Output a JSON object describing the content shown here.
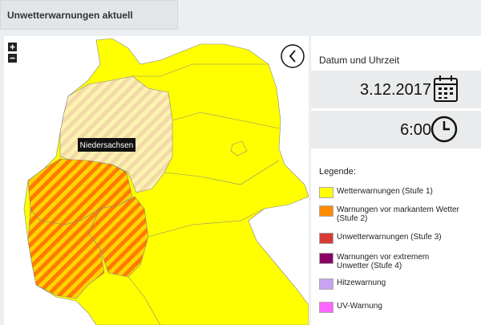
{
  "header": {
    "title": "Unwetterwarnungen aktuell"
  },
  "date_panel": {
    "label": "Datum und Uhrzeit",
    "date": "3.12.2017",
    "time": "6:00"
  },
  "map": {
    "tooltip": "Niedersachsen"
  },
  "legend": {
    "title": "Legende:",
    "items": [
      {
        "label": "Wetterwarnungen (Stufe 1)",
        "color": "#ffff00"
      },
      {
        "label": "Warnungen vor markantem Wetter (Stufe 2)",
        "color": "#ff8c00"
      },
      {
        "label": "Unwetterwarnungen (Stufe 3)",
        "color": "#d83b35"
      },
      {
        "label": "Warnungen vor extremem Unwetter (Stufe 4)",
        "color": "#8b0064"
      },
      {
        "label": "Hitzewarnung",
        "color": "#c9a3f0"
      },
      {
        "label": "UV-Warnung",
        "color": "#ff66ff"
      }
    ]
  }
}
